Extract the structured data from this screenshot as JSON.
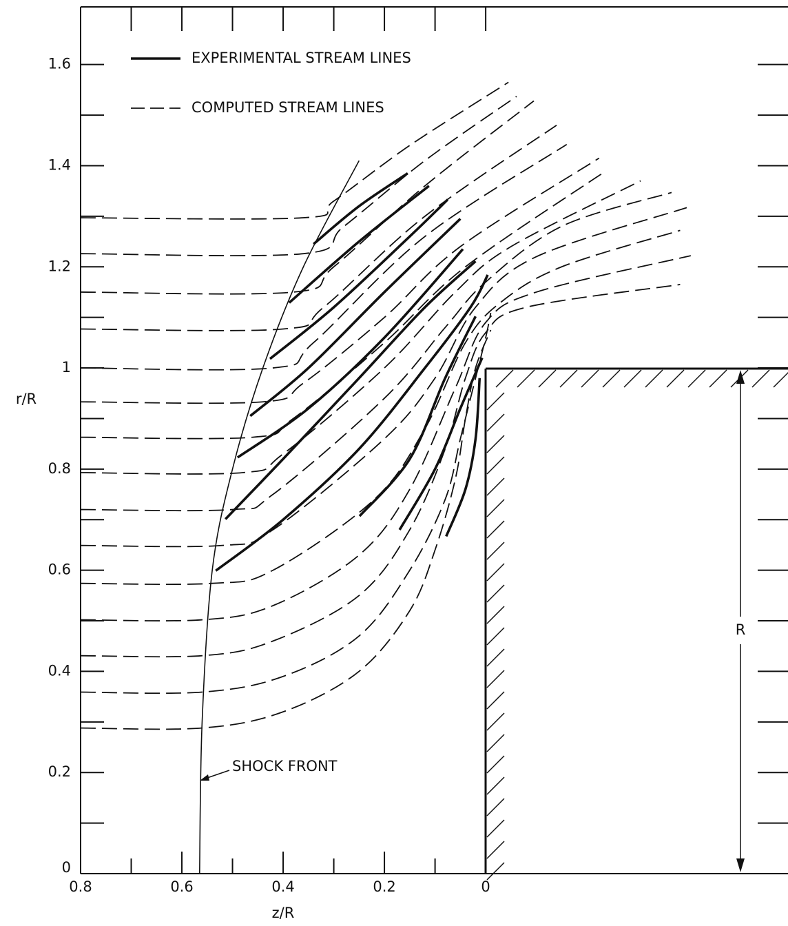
{
  "chart_data": {
    "type": "streamlines",
    "x_label": "z/R",
    "y_label": "r/R",
    "xlim": [
      0.8,
      -0.597
    ],
    "ylim": [
      0,
      1.714
    ],
    "xticks": [
      0.8,
      0.6,
      0.4,
      0.2,
      0
    ],
    "xminorticks": [
      0.7,
      0.5,
      0.3,
      0.1
    ],
    "yticks": [
      0,
      0.2,
      0.4,
      0.6,
      0.8,
      1.0,
      1.2,
      1.4,
      1.6
    ],
    "yminorticks": [
      0.1,
      0.3,
      0.5,
      0.7,
      0.9,
      1.1,
      1.3,
      1.5
    ],
    "series": [
      {
        "name": "EXPERIMENTAL STREAM LINES",
        "color": "#111111",
        "style": "solid",
        "lines": [
          {
            "x": [
              0.34,
              0.25,
              0.154
            ],
            "y": [
              1.245,
              1.32,
              1.385
            ]
          },
          {
            "x": [
              0.388,
              0.25,
              0.112
            ],
            "y": [
              1.129,
              1.25,
              1.36
            ]
          },
          {
            "x": [
              0.426,
              0.3,
              0.15,
              0.075
            ],
            "y": [
              1.018,
              1.12,
              1.26,
              1.333
            ]
          },
          {
            "x": [
              0.465,
              0.35,
              0.2,
              0.05
            ],
            "y": [
              0.905,
              1.0,
              1.15,
              1.295
            ]
          },
          {
            "x": [
              0.49,
              0.35,
              0.2,
              0.045
            ],
            "y": [
              0.823,
              0.92,
              1.06,
              1.235
            ]
          },
          {
            "x": [
              0.514,
              0.4,
              0.25,
              0.12,
              0.02
            ],
            "y": [
              0.701,
              0.82,
              0.98,
              1.12,
              1.211
            ]
          },
          {
            "x": [
              0.533,
              0.4,
              0.25,
              0.12,
              0.03,
              -0.004
            ],
            "y": [
              0.599,
              0.7,
              0.84,
              1.0,
              1.12,
              1.184
            ]
          },
          {
            "x": [
              0.249,
              0.15,
              0.08,
              0.02
            ],
            "y": [
              0.707,
              0.82,
              0.98,
              1.102
            ]
          },
          {
            "x": [
              0.17,
              0.1,
              0.05,
              0.007
            ],
            "y": [
              0.68,
              0.8,
              0.92,
              1.02
            ]
          },
          {
            "x": [
              0.078,
              0.04,
              0.02,
              0.012
            ],
            "y": [
              0.667,
              0.76,
              0.86,
              0.98
            ]
          }
        ]
      },
      {
        "name": "COMPUTED STREAM LINES",
        "color": "#111111",
        "style": "dashed",
        "lines": [
          {
            "x": [
              0.8,
              0.36,
              0.3,
              0.15,
              -0.045
            ],
            "y": [
              1.297,
              1.297,
              1.33,
              1.44,
              1.565
            ]
          },
          {
            "x": [
              0.8,
              0.36,
              0.28,
              0.12,
              -0.061
            ],
            "y": [
              1.226,
              1.226,
              1.28,
              1.41,
              1.537
            ]
          },
          {
            "x": [
              0.8,
              0.38,
              0.3,
              0.12,
              -0.095
            ],
            "y": [
              1.15,
              1.15,
              1.2,
              1.36,
              1.528
            ]
          },
          {
            "x": [
              0.8,
              0.4,
              0.32,
              0.12,
              -0.14
            ],
            "y": [
              1.077,
              1.077,
              1.12,
              1.3,
              1.48
            ]
          },
          {
            "x": [
              0.8,
              0.42,
              0.34,
              0.12,
              -0.16
            ],
            "y": [
              1.0,
              1.0,
              1.05,
              1.26,
              1.442
            ]
          },
          {
            "x": [
              0.8,
              0.44,
              0.36,
              0.2,
              0.05,
              -0.224
            ],
            "y": [
              0.933,
              0.933,
              0.97,
              1.1,
              1.24,
              1.415
            ]
          },
          {
            "x": [
              0.8,
              0.46,
              0.38,
              0.2,
              0.04,
              -0.238
            ],
            "y": [
              0.863,
              0.863,
              0.9,
              1.05,
              1.2,
              1.39
            ]
          },
          {
            "x": [
              0.8,
              0.48,
              0.4,
              0.2,
              0.06,
              -0.05,
              -0.306
            ],
            "y": [
              0.793,
              0.793,
              0.83,
              1.0,
              1.15,
              1.24,
              1.37
            ]
          },
          {
            "x": [
              0.8,
              0.5,
              0.42,
              0.2,
              0.08,
              0.0,
              -0.15,
              -0.367
            ],
            "y": [
              0.72,
              0.72,
              0.75,
              0.94,
              1.08,
              1.17,
              1.28,
              1.347
            ]
          },
          {
            "x": [
              0.8,
              0.52,
              0.42,
              0.2,
              0.1,
              0.02,
              -0.1,
              -0.397
            ],
            "y": [
              0.649,
              0.649,
              0.68,
              0.86,
              0.98,
              1.12,
              1.22,
              1.317
            ]
          },
          {
            "x": [
              0.8,
              0.54,
              0.42,
              0.22,
              0.12,
              0.04,
              -0.03,
              -0.15,
              -0.384
            ],
            "y": [
              0.574,
              0.574,
              0.6,
              0.74,
              0.88,
              1.05,
              1.13,
              1.2,
              1.272
            ]
          },
          {
            "x": [
              0.8,
              0.56,
              0.42,
              0.25,
              0.15,
              0.06,
              0.0,
              -0.1,
              -0.405
            ],
            "y": [
              0.502,
              0.502,
              0.53,
              0.63,
              0.76,
              0.96,
              1.09,
              1.15,
              1.222
            ]
          },
          {
            "x": [
              0.8,
              0.56,
              0.42,
              0.25,
              0.15,
              0.08,
              0.04,
              0.0,
              -0.08,
              -0.384
            ],
            "y": [
              0.431,
              0.431,
              0.46,
              0.55,
              0.68,
              0.84,
              0.98,
              1.07,
              1.12,
              1.165
            ]
          },
          {
            "x": [
              0.8,
              0.56,
              0.4,
              0.25,
              0.15,
              0.08,
              0.05,
              0.02,
              0.0,
              -0.01
            ],
            "y": [
              0.359,
              0.359,
              0.39,
              0.47,
              0.6,
              0.74,
              0.86,
              0.98,
              1.06,
              1.109
            ]
          },
          {
            "x": [
              0.8,
              0.56,
              0.4,
              0.25,
              0.15,
              0.1,
              0.06,
              0.04,
              0.02,
              -0.01
            ],
            "y": [
              0.288,
              0.288,
              0.32,
              0.4,
              0.52,
              0.64,
              0.78,
              0.9,
              1.0,
              1.075
            ]
          }
        ]
      }
    ],
    "shock_front": {
      "label": "SHOCK FRONT",
      "x": [
        0.565,
        0.56,
        0.54,
        0.5,
        0.44,
        0.36,
        0.25
      ],
      "y": [
        0,
        0.3,
        0.6,
        0.8,
        1.0,
        1.2,
        1.41
      ]
    },
    "body_label": "R"
  }
}
